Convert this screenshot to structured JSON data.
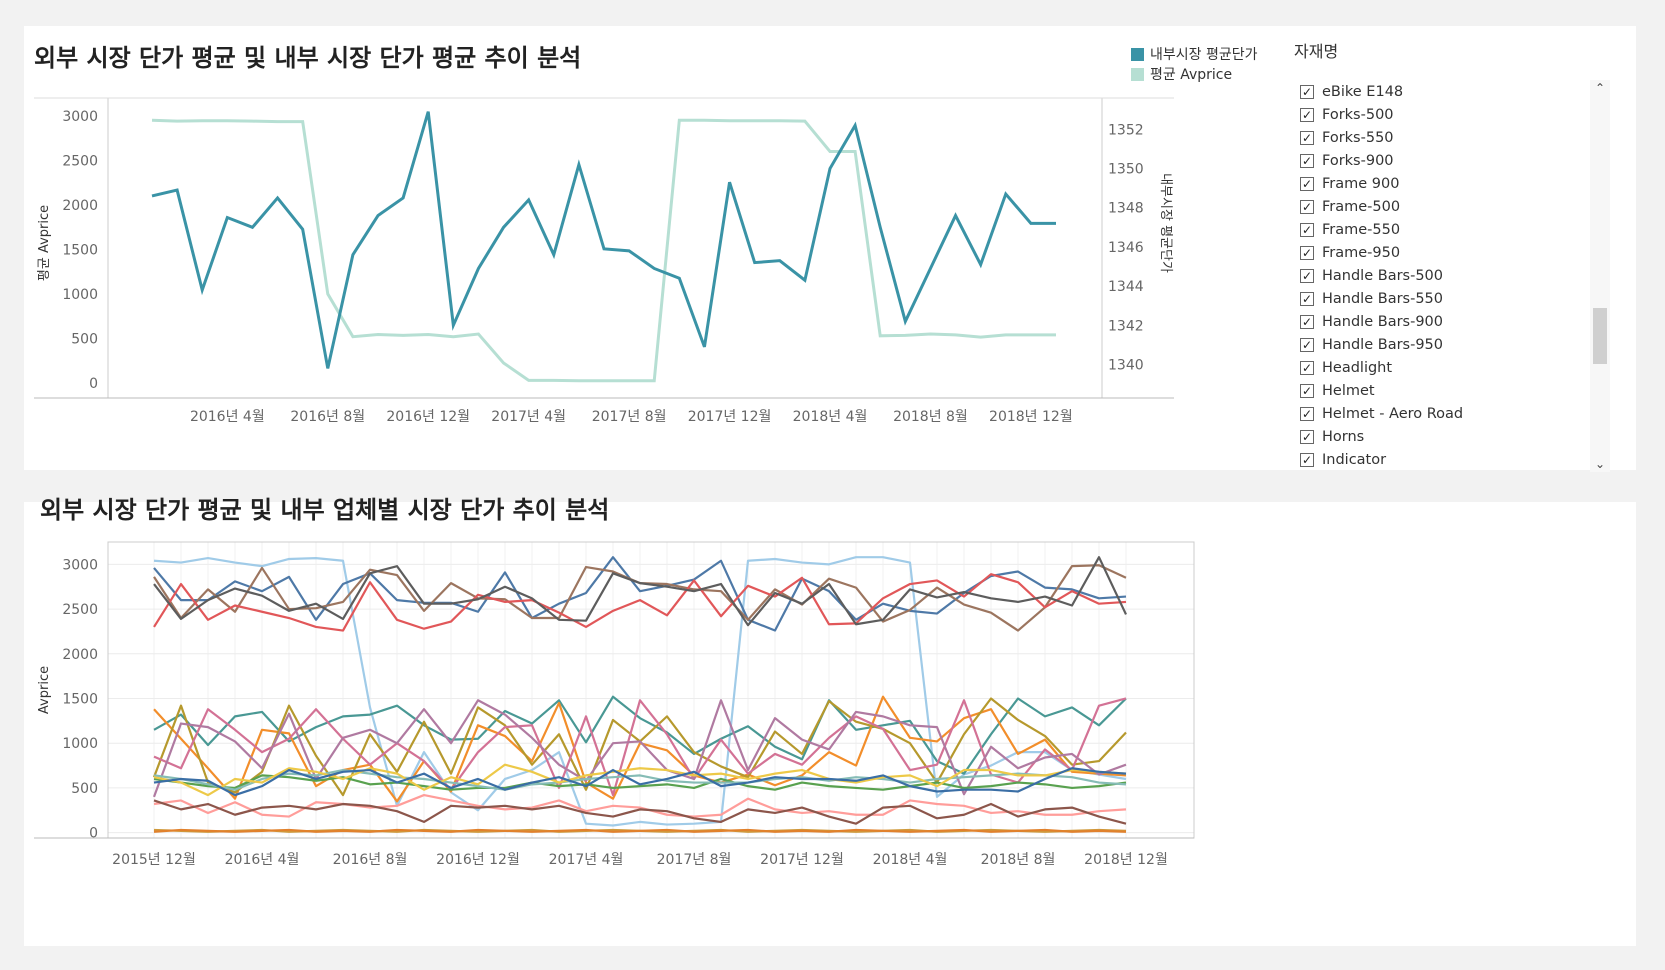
{
  "colors": {
    "internal": "#3a93a6",
    "external": "#b6dfd3",
    "grid": "#e6e6e6",
    "palette": [
      "#4e79a7",
      "#9c755f",
      "#e15759",
      "#5d5d5d",
      "#a0cbe8",
      "#8cd17d",
      "#f28e2b",
      "#b6992d",
      "#499894",
      "#d37295",
      "#b07aa1",
      "#59a14f",
      "#86bcb6",
      "#ff9d9a",
      "#edc948"
    ]
  },
  "top": {
    "title": "외부 시장 단가 평균 및 내부 시장 단가 평균 추이 분석",
    "legend": [
      {
        "label": "내부시장 평균단가",
        "color": "#3a93a6"
      },
      {
        "label": "평균 Avprice",
        "color": "#b6dfd3"
      }
    ],
    "filter": {
      "title": "자재명",
      "items": [
        "eBike E148",
        "Forks-500",
        "Forks-550",
        "Forks-900",
        "Frame 900",
        "Frame-500",
        "Frame-550",
        "Frame-950",
        "Handle Bars-500",
        "Handle Bars-550",
        "Handle Bars-900",
        "Handle Bars-950",
        "Headlight",
        "Helmet",
        "Helmet - Aero Road",
        "Horns",
        "Indicator"
      ],
      "check_mark": "✓",
      "up_arrow": "⌃",
      "down_arrow": "⌄"
    }
  },
  "bottom": {
    "title": "외부 시장 단가 평균 및 내부 업체별 시장 단가 추이 분석"
  },
  "chart_data": [
    {
      "type": "line",
      "title": "외부 시장 단가 평균 및 내부 시장 단가 평균 추이 분석",
      "ylabel": "평균 Avprice",
      "y2label": "내부시장 평균단가",
      "ylim": [
        0,
        3200
      ],
      "y2lim": [
        1338.8,
        1353.6
      ],
      "yticks": [
        0,
        500,
        1000,
        1500,
        2000,
        2500,
        3000
      ],
      "y2ticks": [
        1340,
        1342,
        1344,
        1346,
        1348,
        1350,
        1352
      ],
      "xticks": [
        "2016년 4월",
        "2016년 8월",
        "2016년 12월",
        "2017년 4월",
        "2017년 8월",
        "2017년 12월",
        "2018년 4월",
        "2018년 8월",
        "2018년 12월"
      ],
      "xtick_index": [
        3,
        7,
        11,
        15,
        19,
        23,
        27,
        31,
        35
      ],
      "x_count": 37,
      "series": [
        {
          "name": "평균 Avprice",
          "axis": "left",
          "values": [
            2950,
            2940,
            2945,
            2945,
            2940,
            2935,
            2935,
            1000,
            520,
            545,
            535,
            545,
            520,
            550,
            225,
            30,
            30,
            25,
            25,
            25,
            25,
            2950,
            2950,
            2945,
            2945,
            2945,
            2940,
            2600,
            2600,
            530,
            535,
            550,
            540,
            515,
            540,
            540,
            540
          ]
        },
        {
          "name": "内部",
          "axis": "right",
          "values": [
            1348.6,
            1348.9,
            1343.8,
            1347.5,
            1347.0,
            1348.5,
            1346.9,
            1339.8,
            1345.6,
            1347.6,
            1348.5,
            1352.9,
            1342.0,
            1344.9,
            1347.0,
            1348.4,
            1345.6,
            1350.2,
            1345.9,
            1345.8,
            1344.9,
            1344.4,
            1340.9,
            1349.3,
            1345.2,
            1345.3,
            1344.3,
            1350.0,
            1352.2,
            1347.0,
            1342.2,
            1344.9,
            1347.6,
            1345.1,
            1348.7,
            1347.2,
            1347.2
          ]
        }
      ]
    },
    {
      "type": "line",
      "title": "외부 시장 단가 평균 및 내부 업체별 시장 단가 추이 분석",
      "ylabel": "Avprice",
      "ylim": [
        -60,
        3250
      ],
      "yticks": [
        0,
        500,
        1000,
        1500,
        2000,
        2500,
        3000
      ],
      "xticks": [
        "2015년 12월",
        "2016년 4월",
        "2016년 8월",
        "2016년 12월",
        "2017년 4월",
        "2017년 8월",
        "2017년 12월",
        "2018년 4월",
        "2018년 8월",
        "2018년 12월"
      ],
      "xtick_index": [
        0,
        4,
        8,
        12,
        16,
        20,
        24,
        28,
        32,
        36
      ],
      "x_count": 37,
      "series": [
        {
          "color": "#a0cbe8",
          "values": [
            3040,
            3020,
            3070,
            3020,
            2980,
            3060,
            3070,
            3040,
            1400,
            300,
            900,
            450,
            250,
            600,
            700,
            900,
            100,
            80,
            120,
            90,
            100,
            120,
            3040,
            3060,
            3020,
            3000,
            3080,
            3080,
            3020,
            400,
            650,
            750,
            900,
            900,
            700,
            650,
            600
          ]
        },
        {
          "color": "#4e79a7",
          "values": [
            2960,
            2600,
            2600,
            2810,
            2700,
            2860,
            2380,
            2780,
            2900,
            2600,
            2570,
            2570,
            2470,
            2910,
            2400,
            2560,
            2680,
            3080,
            2700,
            2760,
            2830,
            3040,
            2380,
            2260,
            2840,
            2700,
            2380,
            2560,
            2480,
            2450,
            2680,
            2870,
            2920,
            2740,
            2720,
            2620,
            2640
          ]
        },
        {
          "color": "#9c755f",
          "values": [
            2860,
            2400,
            2720,
            2470,
            2960,
            2500,
            2510,
            2580,
            2940,
            2880,
            2480,
            2790,
            2620,
            2610,
            2400,
            2400,
            2970,
            2920,
            2790,
            2780,
            2720,
            2700,
            2380,
            2720,
            2550,
            2840,
            2740,
            2360,
            2490,
            2740,
            2550,
            2460,
            2260,
            2520,
            2980,
            2990,
            2850
          ]
        },
        {
          "color": "#e15759",
          "values": [
            2300,
            2780,
            2380,
            2540,
            2470,
            2400,
            2300,
            2260,
            2800,
            2380,
            2280,
            2360,
            2660,
            2580,
            2600,
            2460,
            2300,
            2480,
            2600,
            2430,
            2820,
            2420,
            2760,
            2640,
            2850,
            2330,
            2340,
            2620,
            2780,
            2820,
            2640,
            2890,
            2800,
            2520,
            2700,
            2560,
            2580
          ]
        },
        {
          "color": "#5d5d5d",
          "values": [
            2780,
            2390,
            2600,
            2730,
            2650,
            2480,
            2560,
            2390,
            2900,
            2980,
            2560,
            2560,
            2610,
            2750,
            2620,
            2380,
            2370,
            2900,
            2790,
            2750,
            2700,
            2780,
            2320,
            2680,
            2560,
            2780,
            2330,
            2380,
            2720,
            2630,
            2690,
            2620,
            2580,
            2640,
            2540,
            3080,
            2440
          ]
        },
        {
          "color": "#499894",
          "values": [
            1150,
            1320,
            980,
            1300,
            1350,
            1020,
            1180,
            1300,
            1320,
            1420,
            1200,
            1040,
            1050,
            1360,
            1220,
            1480,
            1010,
            1520,
            1280,
            1120,
            880,
            1050,
            1190,
            960,
            820,
            1480,
            1150,
            1200,
            1250,
            800,
            660,
            1100,
            1500,
            1300,
            1400,
            1200,
            1500
          ]
        },
        {
          "color": "#f28e2b",
          "values": [
            1380,
            1050,
            720,
            380,
            1150,
            1110,
            520,
            700,
            760,
            350,
            800,
            460,
            1200,
            1080,
            800,
            1450,
            560,
            380,
            1000,
            920,
            640,
            560,
            650,
            530,
            640,
            900,
            750,
            1520,
            1060,
            1020,
            1280,
            1380,
            880,
            1040,
            680,
            660,
            640
          ]
        },
        {
          "color": "#b6992d",
          "values": [
            620,
            1420,
            560,
            450,
            680,
            1420,
            860,
            420,
            1100,
            680,
            1240,
            660,
            1400,
            1200,
            760,
            1100,
            480,
            1260,
            1020,
            1300,
            900,
            740,
            620,
            1130,
            880,
            1470,
            1240,
            1160,
            1000,
            560,
            1100,
            1500,
            1260,
            1080,
            760,
            800,
            1120
          ]
        },
        {
          "color": "#d37295",
          "values": [
            850,
            720,
            1380,
            1150,
            900,
            1050,
            1380,
            1050,
            760,
            1000,
            800,
            480,
            900,
            1180,
            1200,
            500,
            1300,
            420,
            1480,
            1100,
            600,
            1040,
            660,
            880,
            760,
            1060,
            1300,
            1160,
            700,
            760,
            1480,
            650,
            560,
            930,
            700,
            1420,
            1500
          ]
        },
        {
          "color": "#b07aa1",
          "values": [
            400,
            1220,
            1180,
            1020,
            720,
            1330,
            600,
            1060,
            1150,
            1000,
            1380,
            1000,
            1480,
            1320,
            1060,
            760,
            580,
            1000,
            1020,
            700,
            600,
            1480,
            700,
            1280,
            1040,
            930,
            1350,
            1300,
            1200,
            1180,
            430,
            960,
            720,
            840,
            880,
            650,
            760
          ]
        },
        {
          "color": "#59a14f",
          "values": [
            600,
            560,
            520,
            500,
            640,
            620,
            580,
            620,
            540,
            560,
            520,
            480,
            500,
            500,
            560,
            520,
            540,
            500,
            520,
            540,
            500,
            600,
            520,
            480,
            560,
            520,
            500,
            480,
            520,
            560,
            500,
            520,
            560,
            540,
            500,
            520,
            560
          ]
        },
        {
          "color": "#86bcb6",
          "values": [
            640,
            600,
            540,
            480,
            600,
            660,
            640,
            700,
            660,
            620,
            600,
            560,
            520,
            480,
            540,
            560,
            600,
            620,
            640,
            580,
            560,
            560,
            560,
            600,
            620,
            580,
            620,
            600,
            560,
            600,
            620,
            640,
            660,
            640,
            620,
            560,
            540
          ]
        },
        {
          "color": "#edc948",
          "values": [
            620,
            560,
            420,
            600,
            560,
            720,
            680,
            600,
            720,
            660,
            480,
            620,
            540,
            760,
            680,
            560,
            640,
            680,
            720,
            700,
            640,
            660,
            600,
            660,
            700,
            600,
            560,
            620,
            640,
            520,
            700,
            700,
            640,
            640,
            700,
            680,
            660
          ]
        },
        {
          "color": "#3a6ea5",
          "values": [
            560,
            600,
            580,
            420,
            520,
            700,
            600,
            680,
            700,
            560,
            660,
            500,
            600,
            480,
            560,
            620,
            520,
            700,
            540,
            600,
            680,
            520,
            560,
            620,
            600,
            600,
            580,
            640,
            520,
            460,
            480,
            480,
            460,
            600,
            720,
            680,
            660
          ]
        },
        {
          "color": "#ff9d9a",
          "values": [
            320,
            360,
            220,
            340,
            200,
            180,
            340,
            320,
            280,
            300,
            420,
            360,
            300,
            260,
            280,
            360,
            240,
            300,
            280,
            200,
            180,
            200,
            380,
            260,
            220,
            240,
            200,
            200,
            360,
            320,
            300,
            220,
            240,
            200,
            200,
            240,
            260
          ]
        },
        {
          "color": "#8c564b",
          "values": [
            360,
            260,
            320,
            200,
            280,
            300,
            260,
            320,
            300,
            240,
            120,
            300,
            280,
            300,
            260,
            300,
            220,
            180,
            260,
            240,
            160,
            120,
            260,
            220,
            280,
            180,
            100,
            280,
            300,
            160,
            200,
            320,
            180,
            260,
            280,
            180,
            100
          ]
        },
        {
          "color": "#cf9a3c",
          "values": [
            30,
            20,
            10,
            20,
            30,
            10,
            20,
            30,
            20,
            10,
            30,
            20,
            10,
            20,
            30,
            10,
            20,
            30,
            20,
            10,
            20,
            30,
            10,
            20,
            30,
            20,
            10,
            20,
            30,
            10,
            20,
            30,
            20,
            10,
            20,
            30,
            20
          ]
        },
        {
          "color": "#e1812c",
          "values": [
            10,
            30,
            20,
            10,
            20,
            30,
            10,
            20,
            10,
            30,
            20,
            10,
            30,
            20,
            10,
            20,
            30,
            10,
            20,
            30,
            10,
            20,
            30,
            10,
            20,
            10,
            30,
            20,
            10,
            20,
            30,
            10,
            20,
            30,
            10,
            20,
            10
          ]
        }
      ]
    }
  ]
}
